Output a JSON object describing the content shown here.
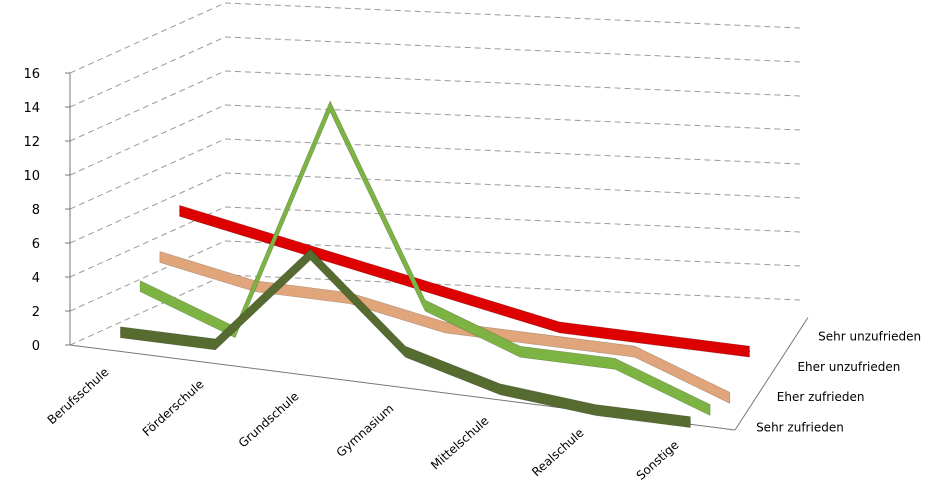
{
  "chart_data": {
    "type": "line",
    "subtype": "3d-line",
    "title": "",
    "xlabel": "",
    "ylabel": "",
    "ylim": [
      0,
      16
    ],
    "yticks": [
      0,
      2,
      4,
      6,
      8,
      10,
      12,
      14,
      16
    ],
    "categories": [
      "Berufsschule",
      "Förderschule",
      "Grundschule",
      "Gymnasium",
      "Mittelschule",
      "Realschule",
      "Sonstige"
    ],
    "series": [
      {
        "name": "Sehr zufrieden",
        "color": "#556b2f",
        "values": [
          1,
          1,
          7,
          2,
          0.5,
          0,
          0
        ]
      },
      {
        "name": "Eher zufrieden",
        "color": "#7cb342",
        "values": [
          3,
          1,
          15,
          4,
          2,
          2,
          0
        ]
      },
      {
        "name": "Eher unzufrieden",
        "color": "#e0a57a",
        "values": [
          4,
          3,
          3,
          2,
          2,
          2,
          0
        ]
      },
      {
        "name": "Sehr unzufrieden",
        "color": "#dd0000",
        "values": [
          6,
          5,
          4,
          3,
          2,
          2,
          2
        ]
      }
    ],
    "grid": true,
    "legend": "none"
  }
}
